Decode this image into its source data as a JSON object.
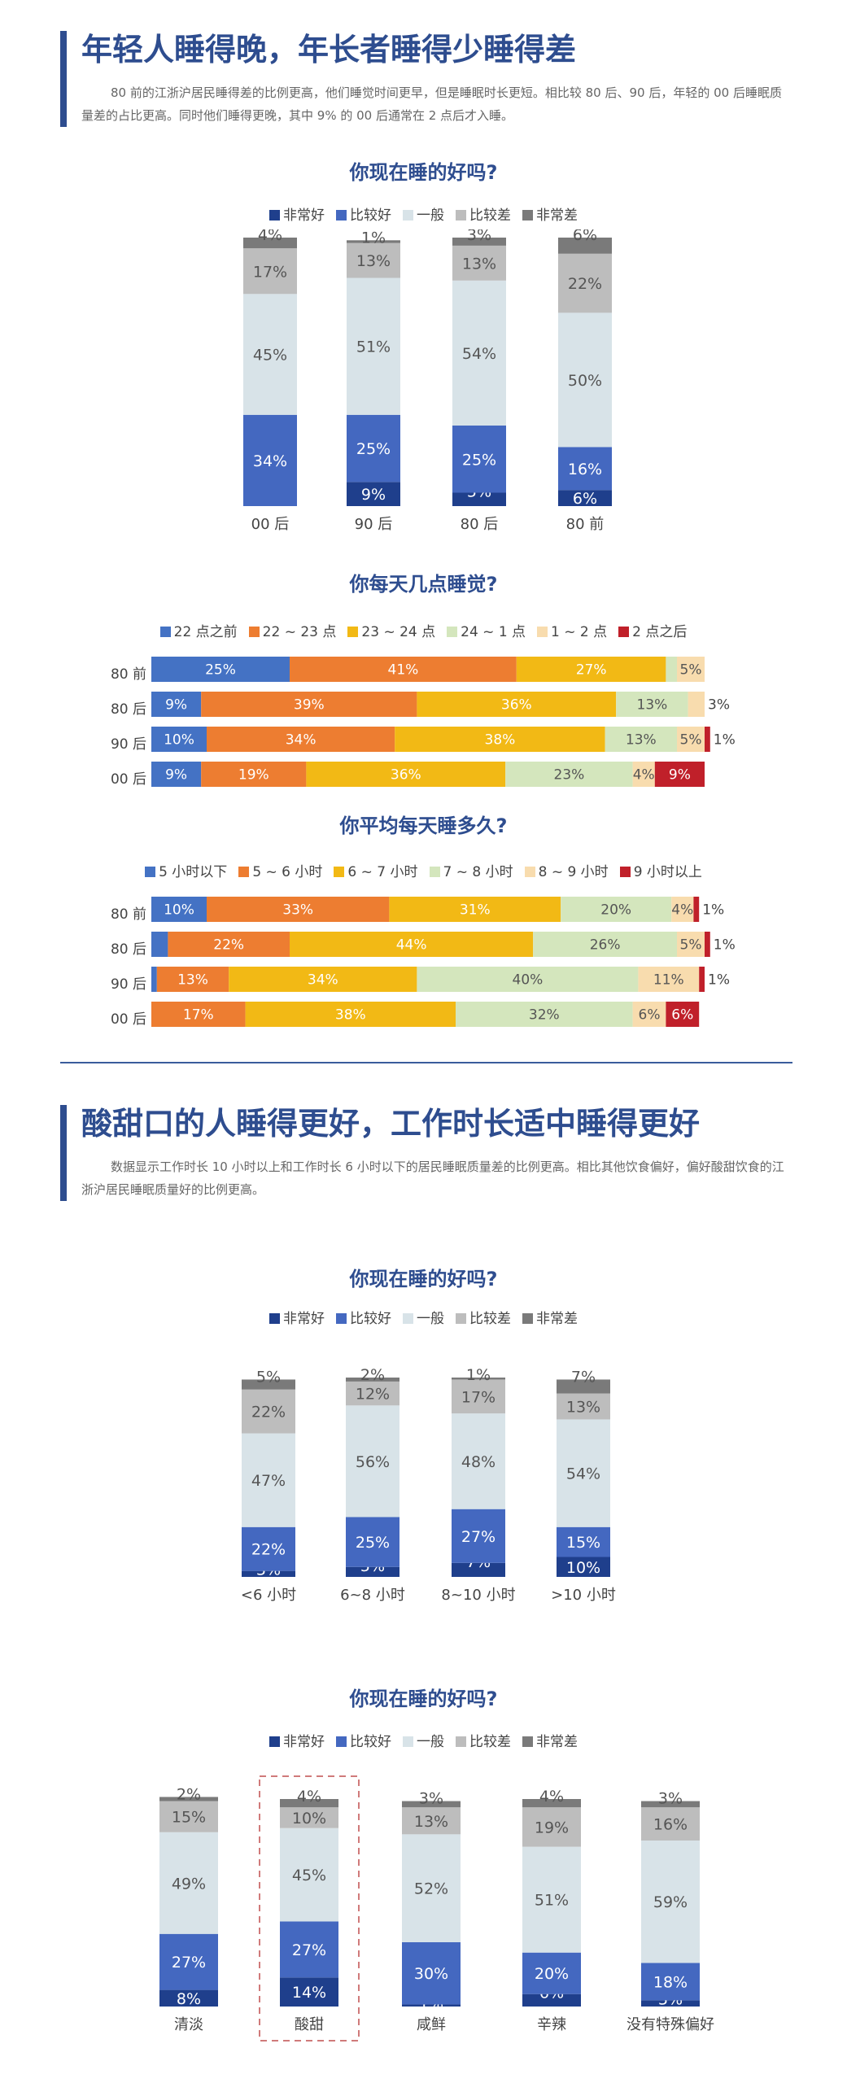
{
  "sections": [
    {
      "title": "年轻人睡得晚，年长者睡得少睡得差",
      "description": "80 前的江浙沪居民睡得差的比例更高，他们睡觉时间更早，但是睡眠时长更短。相比较 80 后、90 后，年轻的 00 后睡眠质量差的占比更高。同时他们睡得更晚，其中 9% 的 00 后通常在 2 点后才入睡。"
    },
    {
      "title": "酸甜口的人睡得更好，工作时长适中睡得更好",
      "description": "数据显示工作时长 10 小时以上和工作时长 6 小时以下的居民睡眠质量差的比例更高。相比其他饮食偏好，偏好酸甜饮食的江浙沪居民睡眠质量好的比例更高。"
    }
  ],
  "chart_data": [
    {
      "id": "quality_by_gen",
      "type": "stacked_bar",
      "orientation": "vertical",
      "title": "你现在睡的好吗?",
      "categories": [
        "00 后",
        "90 后",
        "80 后",
        "80 前"
      ],
      "series": [
        {
          "name": "非常好",
          "color": "#1f3f8c",
          "values": [
            0,
            9,
            5,
            6
          ]
        },
        {
          "name": "比较好",
          "color": "#4468c0",
          "values": [
            34,
            25,
            25,
            16
          ]
        },
        {
          "name": "一般",
          "color": "#d8e3e8",
          "values": [
            45,
            51,
            54,
            50
          ]
        },
        {
          "name": "比较差",
          "color": "#bdbdbd",
          "values": [
            17,
            13,
            13,
            22
          ]
        },
        {
          "name": "非常差",
          "color": "#7a7a7a",
          "values": [
            4,
            1,
            3,
            6
          ]
        }
      ]
    },
    {
      "id": "bedtime_by_gen",
      "type": "stacked_bar",
      "orientation": "horizontal",
      "title": "你每天几点睡觉?",
      "categories": [
        "80 前",
        "80 后",
        "90 后",
        "00 后"
      ],
      "series": [
        {
          "name": "22 点之前",
          "color": "#4472c4",
          "values": [
            25,
            9,
            10,
            9
          ]
        },
        {
          "name": "22 ~ 23 点",
          "color": "#ed7d31",
          "values": [
            41,
            39,
            34,
            19
          ]
        },
        {
          "name": "23 ~ 24 点",
          "color": "#f2b915",
          "values": [
            27,
            36,
            38,
            36
          ]
        },
        {
          "name": "24 ~ 1 点",
          "color": "#d4e6bd",
          "values": [
            2,
            13,
            13,
            23
          ]
        },
        {
          "name": "1 ~ 2 点",
          "color": "#f8dcae",
          "values": [
            5,
            3,
            5,
            4
          ]
        },
        {
          "name": "2 点之后",
          "color": "#c0202a",
          "values": [
            0,
            0,
            1,
            9
          ]
        }
      ]
    },
    {
      "id": "duration_by_gen",
      "type": "stacked_bar",
      "orientation": "horizontal",
      "title": "你平均每天睡多久?",
      "categories": [
        "80 前",
        "80 后",
        "90 后",
        "00 后"
      ],
      "series": [
        {
          "name": "5 小时以下",
          "color": "#4472c4",
          "values": [
            10,
            3,
            1,
            0
          ]
        },
        {
          "name": "5 ~ 6 小时",
          "color": "#ed7d31",
          "values": [
            33,
            22,
            13,
            17
          ]
        },
        {
          "name": "6 ~ 7 小时",
          "color": "#f2b915",
          "values": [
            31,
            44,
            34,
            38
          ]
        },
        {
          "name": "7 ~ 8 小时",
          "color": "#d4e6bd",
          "values": [
            20,
            26,
            40,
            32
          ]
        },
        {
          "name": "8 ~ 9 小时",
          "color": "#f8dcae",
          "values": [
            4,
            5,
            11,
            6
          ]
        },
        {
          "name": "9 小时以上",
          "color": "#c0202a",
          "values": [
            1,
            1,
            1,
            6
          ]
        }
      ]
    },
    {
      "id": "quality_by_workhours",
      "type": "stacked_bar",
      "orientation": "vertical",
      "title": "你现在睡的好吗?",
      "categories": [
        "<6 小时",
        "6~8 小时",
        "8~10 小时",
        ">10 小时"
      ],
      "series": [
        {
          "name": "非常好",
          "color": "#1f3f8c",
          "values": [
            3,
            5,
            7,
            10
          ]
        },
        {
          "name": "比较好",
          "color": "#4468c0",
          "values": [
            22,
            25,
            27,
            15
          ]
        },
        {
          "name": "一般",
          "color": "#d8e3e8",
          "values": [
            47,
            56,
            48,
            54
          ]
        },
        {
          "name": "比较差",
          "color": "#bdbdbd",
          "values": [
            22,
            12,
            17,
            13
          ]
        },
        {
          "name": "非常差",
          "color": "#7a7a7a",
          "values": [
            5,
            2,
            1,
            7
          ]
        }
      ]
    },
    {
      "id": "quality_by_diet",
      "type": "stacked_bar",
      "orientation": "vertical",
      "title": "你现在睡的好吗?",
      "categories": [
        "清淡",
        "酸甜",
        "咸鲜",
        "辛辣",
        "没有特殊偏好"
      ],
      "highlight_index": 1,
      "series": [
        {
          "name": "非常好",
          "color": "#1f3f8c",
          "values": [
            8,
            14,
            1,
            6,
            3
          ]
        },
        {
          "name": "比较好",
          "color": "#4468c0",
          "values": [
            27,
            27,
            30,
            20,
            18
          ]
        },
        {
          "name": "一般",
          "color": "#d8e3e8",
          "values": [
            49,
            45,
            52,
            51,
            59
          ]
        },
        {
          "name": "比较差",
          "color": "#bdbdbd",
          "values": [
            15,
            10,
            13,
            19,
            16
          ]
        },
        {
          "name": "非常差",
          "color": "#7a7a7a",
          "values": [
            2,
            4,
            3,
            4,
            3
          ]
        }
      ]
    }
  ]
}
